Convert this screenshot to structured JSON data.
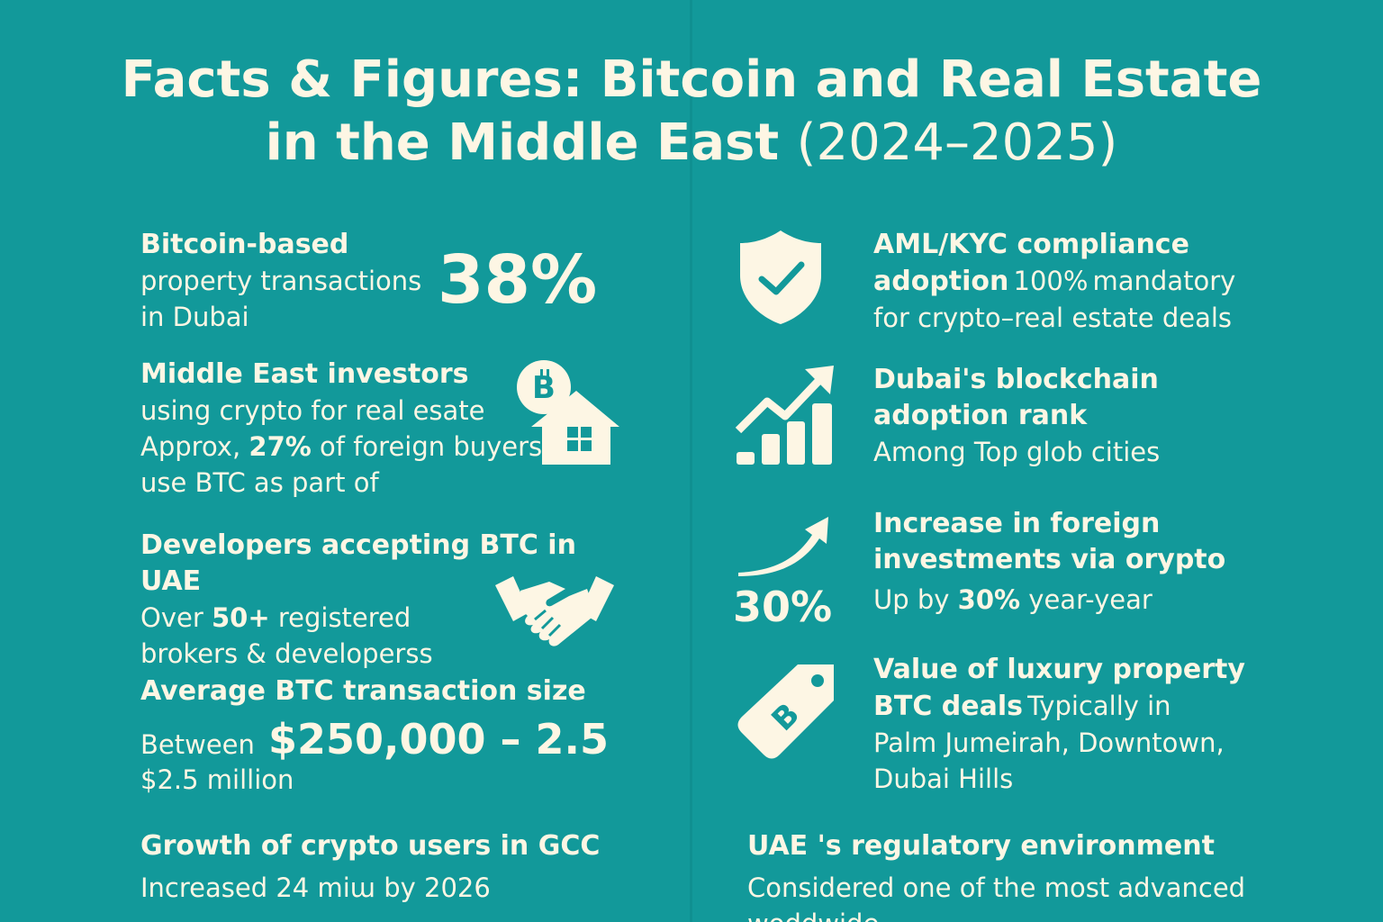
{
  "title": {
    "line1": "Facts & Figures: Bitcoin and Real Estate",
    "line2_bold": "in the Middle East",
    "line2_light": "(2024–2025)"
  },
  "left": {
    "f1": {
      "heading": "Bitcoin-based",
      "line2": "property transactions",
      "line3": "in Dubai",
      "stat": "38%"
    },
    "f2": {
      "heading": "Middle East investors",
      "line2": "using crypto for real esate",
      "line3_prefix": "Approx,",
      "line3_stat": "27%",
      "line3_suffix": "of foreign buyers",
      "line4": "use BTC as part of"
    },
    "f3": {
      "heading": "Developers accepting BTC in UAE",
      "line2_prefix": "Over",
      "line2_stat": "50+",
      "line2_suffix": "registered",
      "line3": "brokers & developerss"
    },
    "f4": {
      "heading": "Average BTC transaction size",
      "line2_prefix": "Between",
      "stat": "$250,000 – 2.5",
      "line3": "$2.5 million"
    },
    "f5": {
      "heading": "Growth of crypto users in GCC",
      "line2": "Increased 24 miա by 2026"
    }
  },
  "right": {
    "f1": {
      "heading1": "AML/KYC compliance",
      "heading2": "adoption",
      "line2_stat": "100%",
      "line2_suffix": "mandatory",
      "line3": "for crypto–real estate deals"
    },
    "f2": {
      "heading1": "Dubai's blockchain",
      "heading2": "adoption rank",
      "line3": "Among Top glob cities"
    },
    "f3": {
      "heading1": "Increase in foreign",
      "heading2": "investments via orypto",
      "line3_prefix": "Up by",
      "line3_stat": "30%",
      "line3_suffix": "year-year",
      "icon_stat": "30%"
    },
    "f4": {
      "heading1": "Value of luxury property",
      "heading2": "BTC deals",
      "line2_suffix": "Typically in",
      "line3": "Palm Jumeirah, Downtown,",
      "line4": "Dubai Hills"
    },
    "f5": {
      "heading": "UAE 's regulatory environment",
      "line2": "Considered one of the most advanced",
      "line3": "woddwide"
    }
  },
  "icons": {
    "f2_left": "bitcoin-house-icon",
    "f3_left": "handshake-icon",
    "f1_right": "shield-check-icon",
    "f2_right": "bar-chart-arrow-icon",
    "f3_right": "trend-arrow-icon",
    "f4_right": "bitcoin-price-tag-icon"
  },
  "colors": {
    "background": "#12999a",
    "foreground": "#fdf6e4"
  }
}
